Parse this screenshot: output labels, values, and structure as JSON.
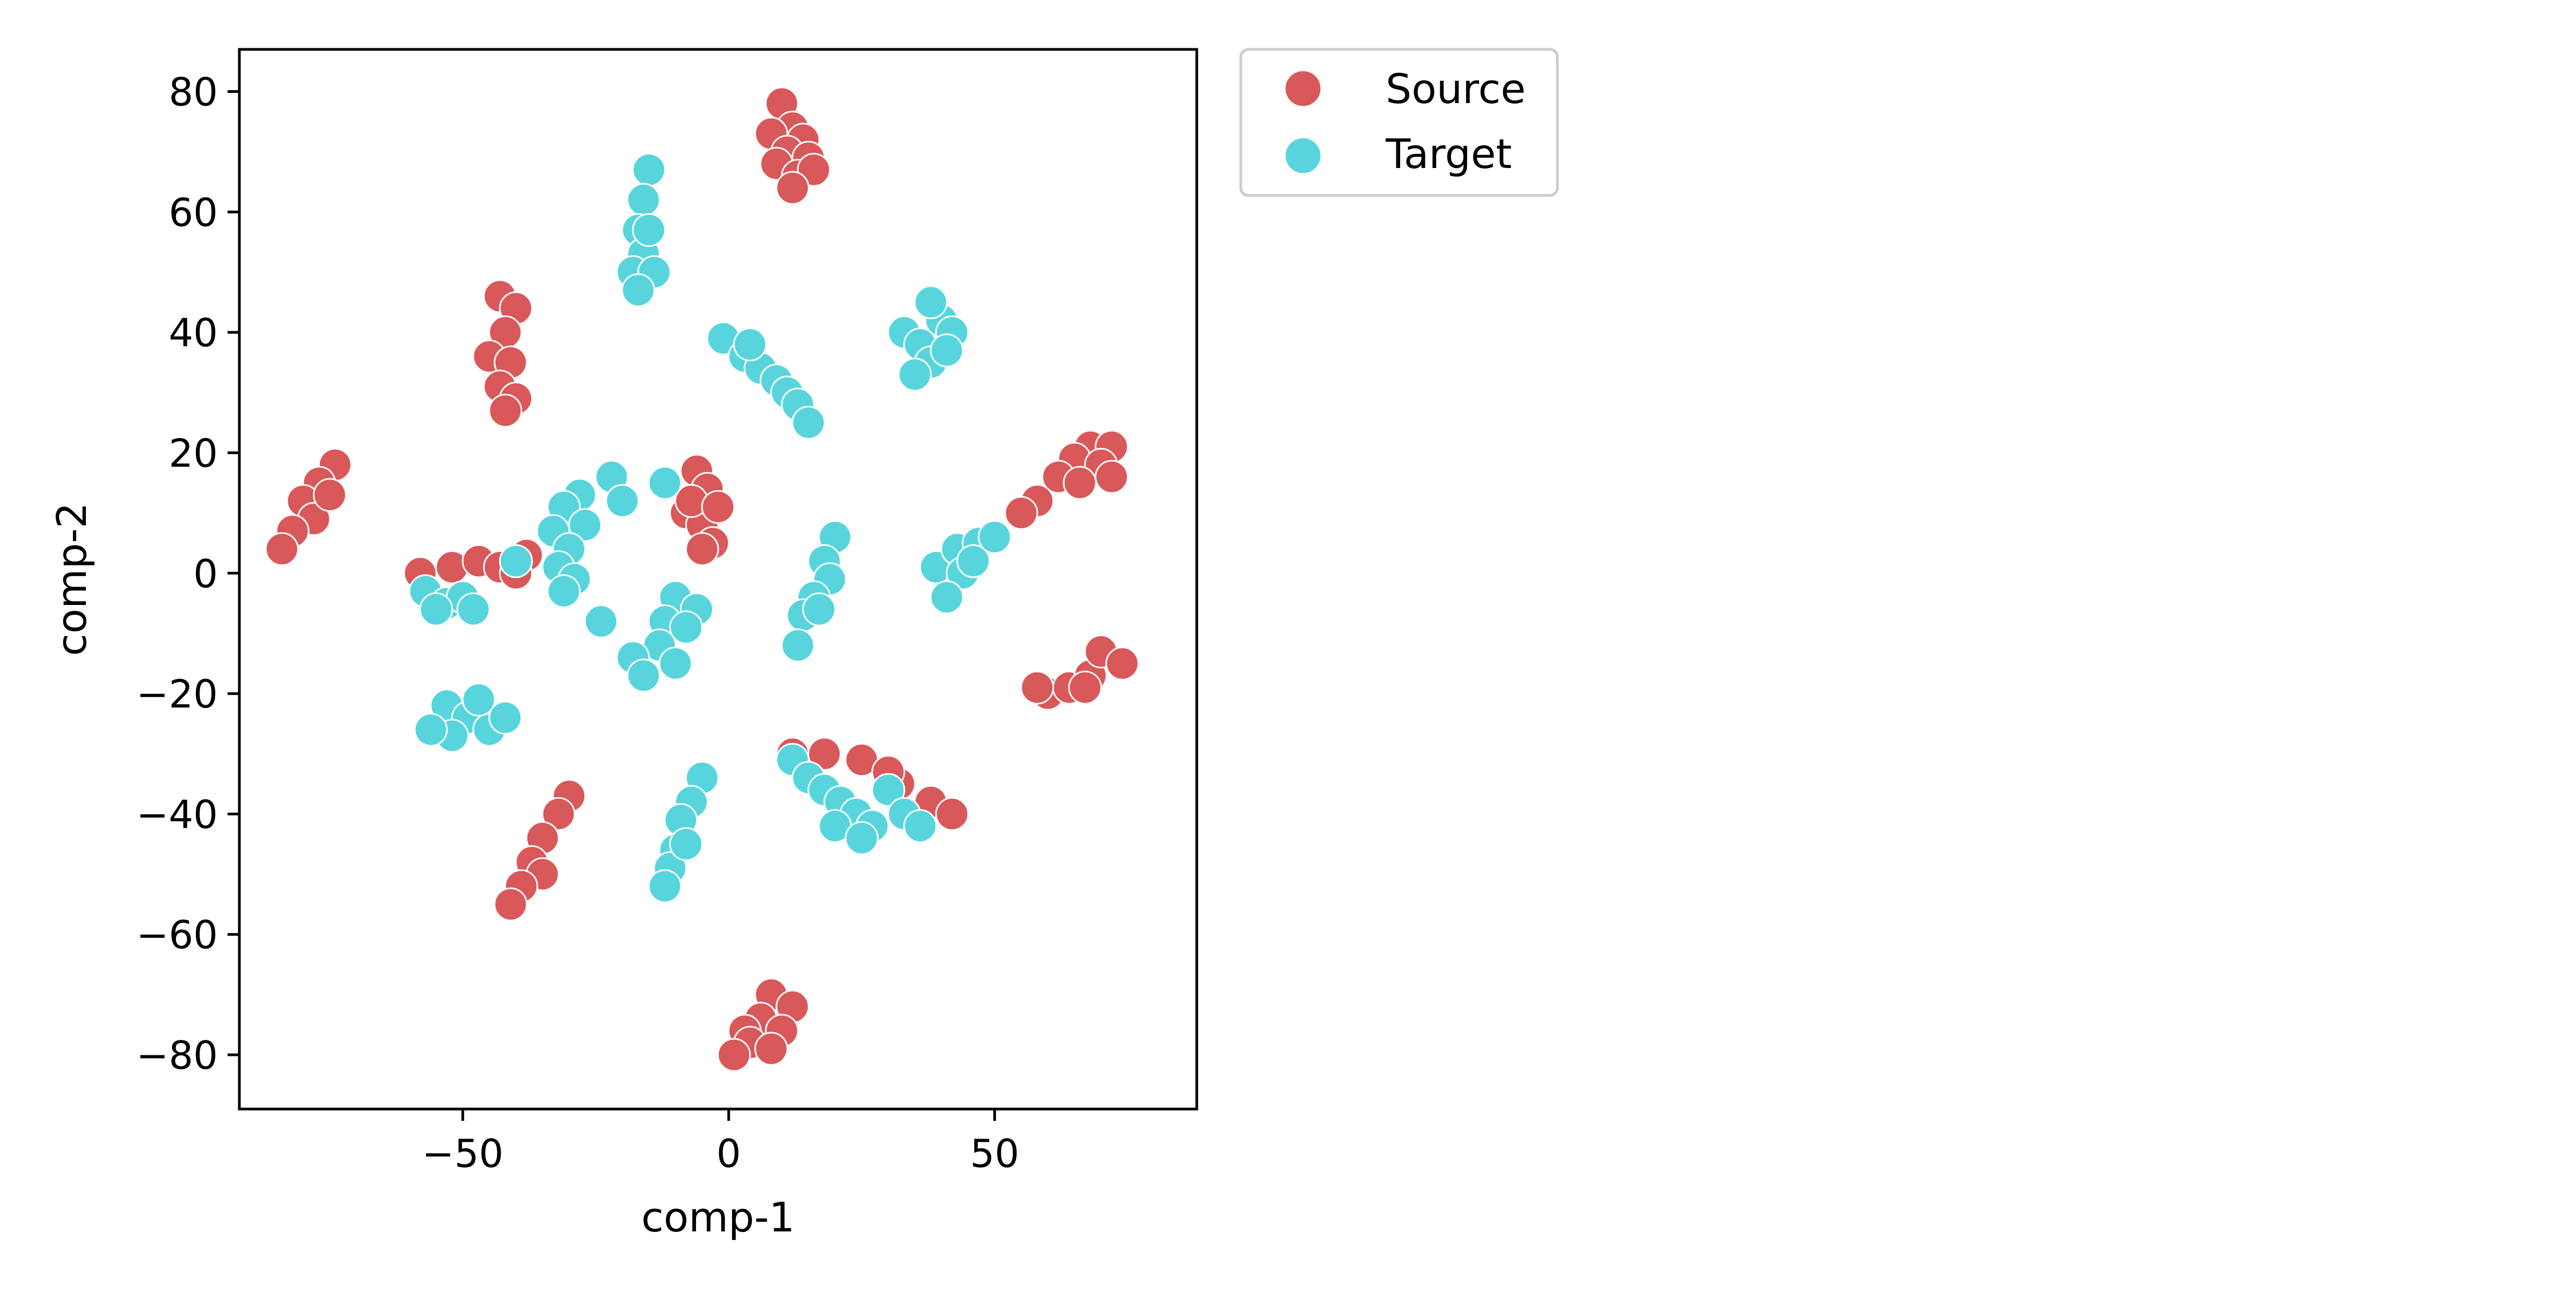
{
  "chart_data": {
    "type": "scatter",
    "title": "",
    "xlabel": "comp-1",
    "ylabel": "comp-2",
    "xlim": [
      -92,
      88
    ],
    "ylim": [
      -89,
      87
    ],
    "xticks": [
      -50,
      0,
      50
    ],
    "xtick_labels": [
      "−50",
      "0",
      "50"
    ],
    "yticks": [
      80,
      60,
      40,
      20,
      0,
      -20,
      -40,
      -60,
      -80
    ],
    "ytick_labels": [
      "80",
      "60",
      "40",
      "20",
      "0",
      "−20",
      "−40",
      "−60",
      "−80"
    ],
    "grid": false,
    "legend_position": "outside-upper-right",
    "series": [
      {
        "name": "Source",
        "color": "#d9585a",
        "points": [
          [
            10,
            78
          ],
          [
            12,
            74
          ],
          [
            8,
            73
          ],
          [
            14,
            72
          ],
          [
            11,
            70
          ],
          [
            15,
            69
          ],
          [
            9,
            68
          ],
          [
            13,
            66
          ],
          [
            16,
            67
          ],
          [
            12,
            64
          ],
          [
            -43,
            46
          ],
          [
            -40,
            44
          ],
          [
            -42,
            40
          ],
          [
            -45,
            36
          ],
          [
            -41,
            35
          ],
          [
            -43,
            31
          ],
          [
            -40,
            29
          ],
          [
            -42,
            27
          ],
          [
            -74,
            18
          ],
          [
            -77,
            15
          ],
          [
            -80,
            12
          ],
          [
            -78,
            9
          ],
          [
            -82,
            7
          ],
          [
            -84,
            4
          ],
          [
            -75,
            13
          ],
          [
            -6,
            17
          ],
          [
            -4,
            14
          ],
          [
            -8,
            10
          ],
          [
            -5,
            8
          ],
          [
            -3,
            5
          ],
          [
            -7,
            12
          ],
          [
            -2,
            11
          ],
          [
            -5,
            4
          ],
          [
            -58,
            0
          ],
          [
            -52,
            1
          ],
          [
            -47,
            2
          ],
          [
            -43,
            1
          ],
          [
            -38,
            3
          ],
          [
            -40,
            0
          ],
          [
            68,
            21
          ],
          [
            72,
            21
          ],
          [
            65,
            19
          ],
          [
            70,
            18
          ],
          [
            62,
            16
          ],
          [
            66,
            15
          ],
          [
            58,
            12
          ],
          [
            55,
            10
          ],
          [
            72,
            16
          ],
          [
            60,
            -20
          ],
          [
            64,
            -19
          ],
          [
            68,
            -17
          ],
          [
            70,
            -13
          ],
          [
            74,
            -15
          ],
          [
            67,
            -19
          ],
          [
            58,
            -19
          ],
          [
            12,
            -30
          ],
          [
            18,
            -30
          ],
          [
            25,
            -31
          ],
          [
            32,
            -35
          ],
          [
            38,
            -38
          ],
          [
            42,
            -40
          ],
          [
            30,
            -33
          ],
          [
            -30,
            -37
          ],
          [
            -32,
            -40
          ],
          [
            -35,
            -44
          ],
          [
            -37,
            -48
          ],
          [
            -35,
            -50
          ],
          [
            -39,
            -52
          ],
          [
            -41,
            -55
          ],
          [
            8,
            -70
          ],
          [
            12,
            -72
          ],
          [
            6,
            -74
          ],
          [
            3,
            -76
          ],
          [
            10,
            -76
          ],
          [
            4,
            -78
          ],
          [
            1,
            -80
          ],
          [
            8,
            -79
          ]
        ]
      },
      {
        "name": "Target",
        "color": "#58d5dc",
        "points": [
          [
            -15,
            67
          ],
          [
            -16,
            62
          ],
          [
            -17,
            57
          ],
          [
            -16,
            53
          ],
          [
            -18,
            50
          ],
          [
            -14,
            50
          ],
          [
            -17,
            47
          ],
          [
            -15,
            57
          ],
          [
            -1,
            39
          ],
          [
            3,
            36
          ],
          [
            6,
            34
          ],
          [
            9,
            32
          ],
          [
            11,
            30
          ],
          [
            13,
            28
          ],
          [
            15,
            25
          ],
          [
            4,
            38
          ],
          [
            33,
            40
          ],
          [
            36,
            38
          ],
          [
            40,
            42
          ],
          [
            38,
            35
          ],
          [
            42,
            40
          ],
          [
            35,
            33
          ],
          [
            41,
            37
          ],
          [
            38,
            45
          ],
          [
            -22,
            16
          ],
          [
            -28,
            13
          ],
          [
            -31,
            11
          ],
          [
            -27,
            8
          ],
          [
            -33,
            7
          ],
          [
            -30,
            4
          ],
          [
            -32,
            1
          ],
          [
            -29,
            -1
          ],
          [
            -31,
            -3
          ],
          [
            -40,
            2
          ],
          [
            -20,
            12
          ],
          [
            -12,
            15
          ],
          [
            -57,
            -3
          ],
          [
            -53,
            -5
          ],
          [
            -50,
            -4
          ],
          [
            -55,
            -6
          ],
          [
            -48,
            -6
          ],
          [
            -10,
            -4
          ],
          [
            -6,
            -6
          ],
          [
            -12,
            -8
          ],
          [
            -8,
            -9
          ],
          [
            -13,
            -12
          ],
          [
            -18,
            -14
          ],
          [
            -16,
            -17
          ],
          [
            -10,
            -15
          ],
          [
            -24,
            -8
          ],
          [
            20,
            6
          ],
          [
            18,
            2
          ],
          [
            19,
            -1
          ],
          [
            16,
            -4
          ],
          [
            14,
            -7
          ],
          [
            13,
            -12
          ],
          [
            17,
            -6
          ],
          [
            39,
            1
          ],
          [
            43,
            4
          ],
          [
            47,
            5
          ],
          [
            50,
            6
          ],
          [
            44,
            0
          ],
          [
            41,
            -4
          ],
          [
            46,
            2
          ],
          [
            -53,
            -22
          ],
          [
            -49,
            -24
          ],
          [
            -45,
            -26
          ],
          [
            -52,
            -27
          ],
          [
            -47,
            -21
          ],
          [
            -42,
            -24
          ],
          [
            -56,
            -26
          ],
          [
            -5,
            -34
          ],
          [
            -7,
            -38
          ],
          [
            -9,
            -41
          ],
          [
            -10,
            -46
          ],
          [
            -11,
            -49
          ],
          [
            -12,
            -52
          ],
          [
            -8,
            -45
          ],
          [
            12,
            -31
          ],
          [
            15,
            -34
          ],
          [
            18,
            -36
          ],
          [
            21,
            -38
          ],
          [
            24,
            -40
          ],
          [
            27,
            -42
          ],
          [
            30,
            -36
          ],
          [
            33,
            -40
          ],
          [
            36,
            -42
          ],
          [
            20,
            -42
          ],
          [
            25,
            -44
          ]
        ]
      }
    ]
  }
}
